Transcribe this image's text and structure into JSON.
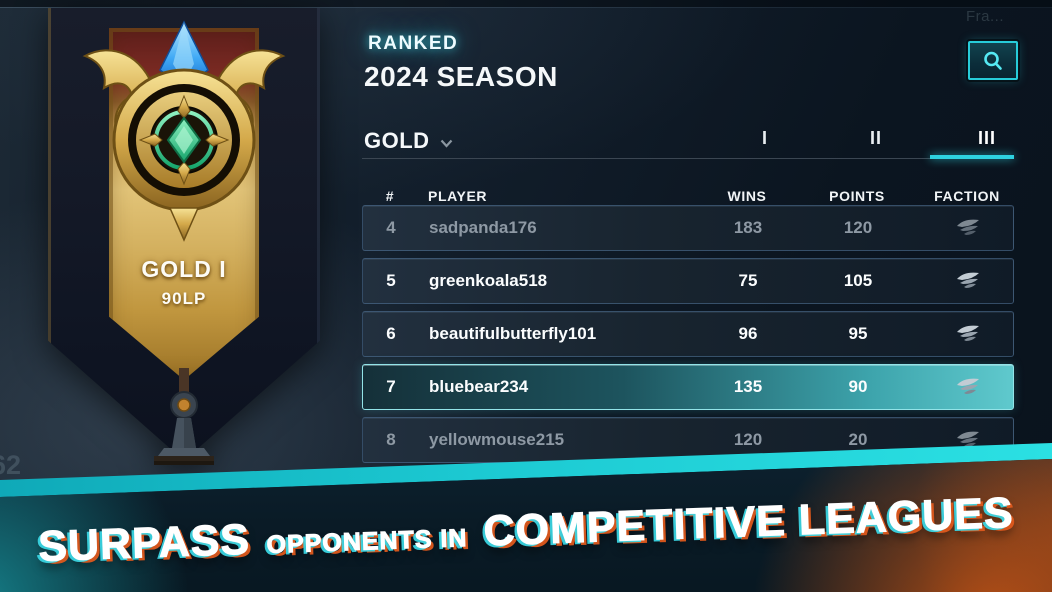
{
  "frame_label": "Fra...",
  "side_label": "62",
  "banner": {
    "tier_label": "GOLD I",
    "lp_label": "90LP",
    "emblem_icon": "gold-winged-crest-with-crystal",
    "stand_icon": "banner-stand"
  },
  "header": {
    "kicker": "RANKED",
    "title": "2024 SEASON",
    "search_icon": "magnifier-icon"
  },
  "filters": {
    "division_label": "GOLD",
    "chevron_icon": "chevron-down-icon",
    "tabs": [
      {
        "label": "I",
        "active": false
      },
      {
        "label": "II",
        "active": false
      },
      {
        "label": "III",
        "active": true
      }
    ]
  },
  "table": {
    "columns": {
      "rank": "#",
      "player": "PLAYER",
      "wins": "WINS",
      "points": "POINTS",
      "faction": "FACTION"
    },
    "rows": [
      {
        "rank": "4",
        "player": "sadpanda176",
        "wins": "183",
        "points": "120",
        "faction_icon": "wing-icon",
        "state": "dimmed"
      },
      {
        "rank": "5",
        "player": "greenkoala518",
        "wins": "75",
        "points": "105",
        "faction_icon": "wing-icon",
        "state": "default"
      },
      {
        "rank": "6",
        "player": "beautifulbutterfly101",
        "wins": "96",
        "points": "95",
        "faction_icon": "wing-icon",
        "state": "default"
      },
      {
        "rank": "7",
        "player": "bluebear234",
        "wins": "135",
        "points": "90",
        "faction_icon": "wing-icon",
        "state": "selected"
      },
      {
        "rank": "8",
        "player": "yellowmouse215",
        "wins": "120",
        "points": "20",
        "faction_icon": "wing-icon",
        "state": "dimmed"
      }
    ]
  },
  "footer": {
    "headline_part1": "SURPASS",
    "headline_part2": "OPPONENTS IN",
    "headline_part3": "COMPETITIVE LEAGUES"
  },
  "colors": {
    "accent_cyan": "#2ed2e0",
    "selected_row_teal": "#5fc9cd",
    "gold": "#d9b968",
    "maroon": "#7a2a22",
    "orange_glow": "#ec6012",
    "background": "#0b1520"
  }
}
